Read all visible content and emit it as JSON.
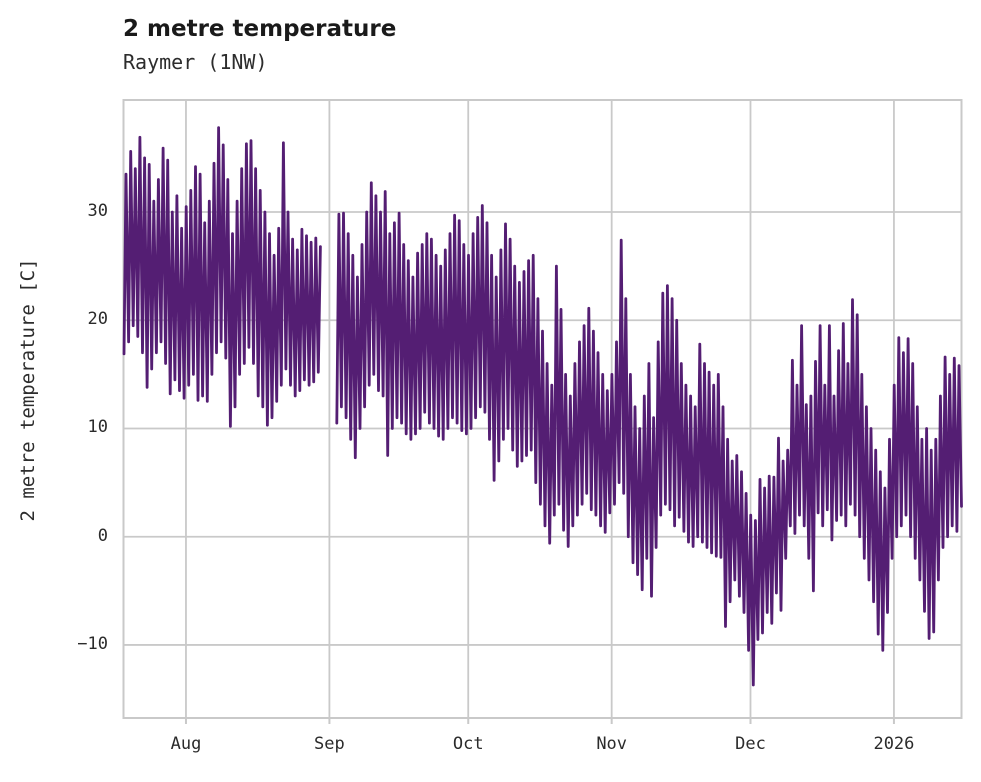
{
  "chart_data": {
    "type": "line",
    "title": "2 metre temperature",
    "subtitle": "Raymer (1NW)",
    "ylabel": "2 metre temperature [C]",
    "line_color": "#541e73",
    "grid_color": "#c9c9c9",
    "background_color": "#ffffff",
    "grid": "on",
    "legend": "none",
    "ylim": [
      -16.75,
      40.35
    ],
    "xlim_days": [
      0,
      181.1
    ],
    "y_ticks": [
      {
        "label": "−10",
        "value": -10
      },
      {
        "label": "0",
        "value": 0
      },
      {
        "label": "10",
        "value": 10
      },
      {
        "label": "20",
        "value": 20
      },
      {
        "label": "30",
        "value": 30
      }
    ],
    "x_ticks": [
      {
        "label": "Aug",
        "day": 13.5
      },
      {
        "label": "Sep",
        "day": 44.5
      },
      {
        "label": "Oct",
        "day": 74.5
      },
      {
        "label": "Nov",
        "day": 105.5
      },
      {
        "label": "Dec",
        "day": 135.5
      },
      {
        "label": "2026",
        "day": 166.5
      }
    ],
    "x_encoding": "day index 0..181 across the x-axis (ticks mark month starts); each day contributes a morning minimum and afternoon maximum; null = missing data gap",
    "daily_max": [
      33.5,
      35.6,
      34,
      36.9,
      35,
      34.4,
      31,
      33,
      35.9,
      34.8,
      30,
      31.5,
      28.5,
      30.5,
      32,
      34.2,
      33.5,
      29,
      31,
      34.5,
      37.8,
      36.2,
      33,
      28,
      31,
      34,
      36.3,
      36.6,
      34,
      32,
      30,
      28,
      26,
      28.5,
      36.4,
      30,
      27.5,
      26.5,
      28.4,
      27.8,
      27.2,
      27.6,
      26.8,
      null,
      null,
      null,
      29.8,
      29.9,
      28,
      26,
      24,
      27,
      30,
      32.7,
      31.5,
      30,
      31.9,
      28,
      29,
      29.9,
      27,
      25.5,
      24,
      26.2,
      27,
      28,
      27.5,
      26,
      25,
      26.5,
      28,
      29.7,
      29.2,
      27,
      26,
      28,
      29.5,
      30.6,
      29,
      26,
      24,
      26.5,
      28.9,
      27.5,
      25,
      23.5,
      24.5,
      25.5,
      26,
      22,
      19,
      16,
      14,
      25,
      21,
      15,
      13,
      16,
      18,
      19.5,
      21.1,
      19,
      17,
      15,
      13.5,
      15,
      18,
      27.4,
      22,
      15,
      12,
      10,
      13,
      16,
      11,
      18,
      22.5,
      23.2,
      22,
      20,
      16,
      14,
      13,
      12,
      17.8,
      16,
      15.2,
      14,
      15,
      12,
      9,
      7,
      7.5,
      6,
      4,
      2,
      1.5,
      5.3,
      4.5,
      5.6,
      5.5,
      9.1,
      7,
      8,
      16.3,
      14,
      19.5,
      12.2,
      13,
      16.2,
      19.5,
      14,
      19.5,
      13,
      17.2,
      19.7,
      16,
      21.9,
      20.5,
      15,
      12,
      10,
      8,
      6,
      4.5,
      9,
      14,
      18.4,
      17,
      18.3,
      16,
      12,
      9,
      10,
      8,
      9,
      13,
      16.6,
      15,
      16.5,
      15.8,
      null
    ],
    "daily_min": [
      16.9,
      18,
      19.5,
      18.5,
      17,
      13.8,
      15.5,
      17,
      18,
      16,
      13.2,
      14.5,
      13.5,
      12.8,
      14,
      15,
      12.6,
      13,
      12.5,
      15,
      17,
      18,
      16.5,
      10.2,
      12,
      15,
      16,
      17.5,
      16,
      13,
      12,
      10.3,
      11,
      12.5,
      14,
      15.5,
      14,
      13,
      13.5,
      14.5,
      14,
      14.3,
      15.2,
      null,
      null,
      null,
      10.5,
      12,
      11,
      9,
      7.3,
      10,
      12,
      14,
      15,
      13.5,
      13,
      7.5,
      10,
      11,
      10.5,
      9.5,
      9,
      9.5,
      10,
      11.5,
      10.5,
      10,
      9.3,
      9,
      10,
      11,
      10.5,
      9.8,
      9.5,
      10,
      11,
      12,
      11.5,
      9,
      5.2,
      7,
      9,
      10,
      8,
      6.5,
      7,
      7.5,
      8,
      5,
      3,
      1,
      -0.6,
      2,
      3,
      0.6,
      -0.9,
      1,
      2,
      3,
      4,
      2.5,
      2,
      1,
      0.4,
      2.2,
      3,
      5,
      4,
      0,
      -2.4,
      -3.5,
      -4.9,
      -2,
      -5.5,
      -1,
      2,
      3,
      2.5,
      1,
      1.8,
      0.5,
      -0.5,
      -0.9,
      0,
      -0.5,
      -1,
      -1.5,
      -1.8,
      -1.9,
      -8.3,
      -6,
      -4,
      -5.5,
      -7,
      -10.5,
      -13.7,
      -9.5,
      -8.9,
      -7,
      -8,
      -5.2,
      -6.8,
      -2,
      1,
      0.3,
      2,
      1,
      -2,
      -5,
      2.2,
      1,
      2.5,
      -0.3,
      1.5,
      2,
      1,
      3,
      2,
      0,
      -2,
      -4,
      -6,
      -9,
      -10.5,
      -7,
      -2,
      0,
      1,
      2,
      0,
      -2,
      -4,
      -6.9,
      -9.4,
      -8.8,
      -4,
      -1,
      0,
      1,
      0.5,
      2.8
    ]
  }
}
